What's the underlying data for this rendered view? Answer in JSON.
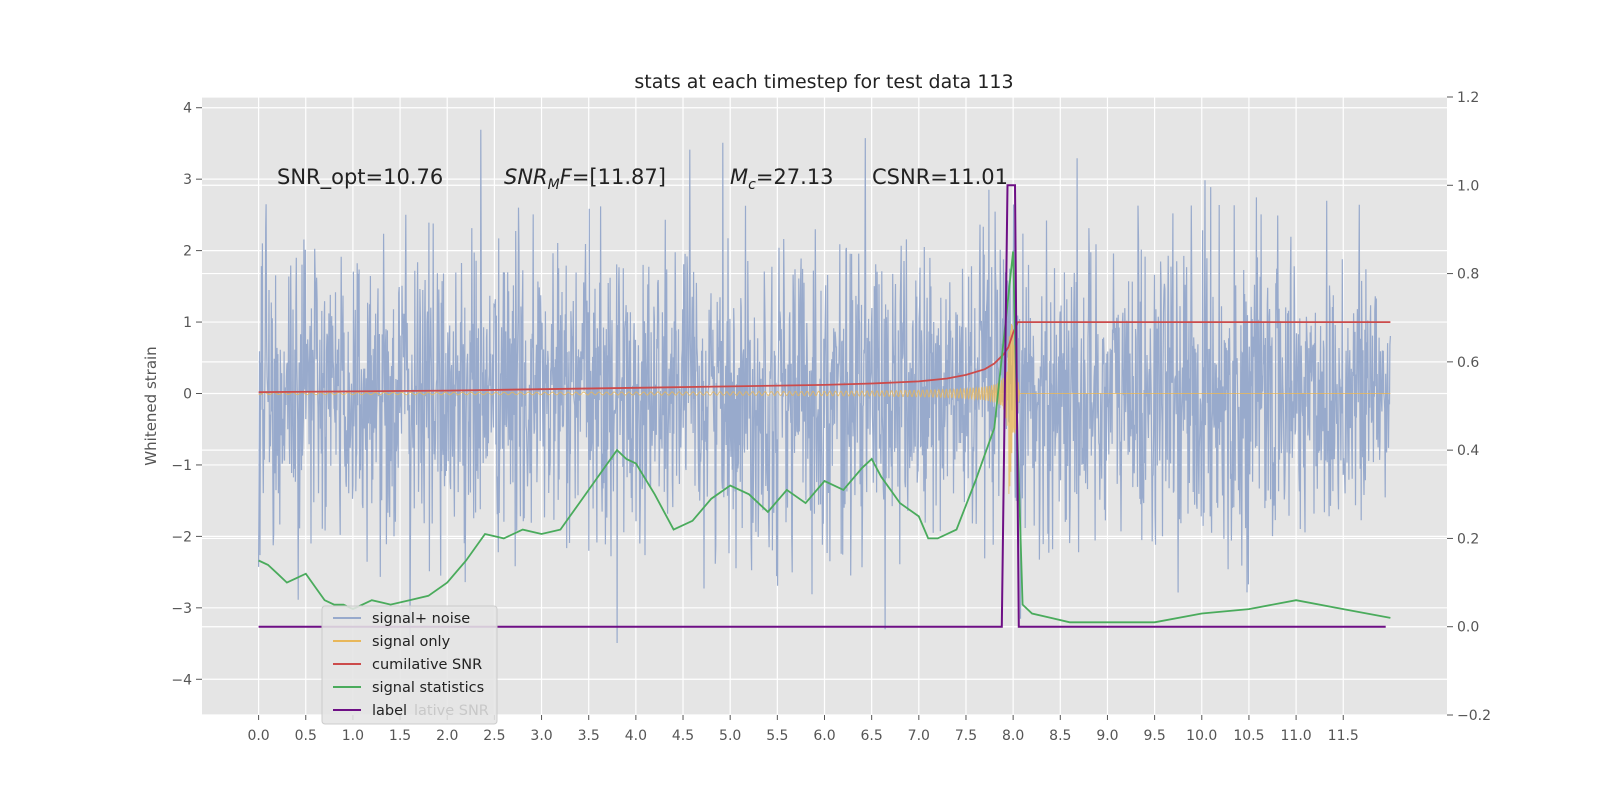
{
  "chart_data": {
    "type": "line",
    "title": "stats at each timestep for test data 113",
    "ylabel": "Whitened strain",
    "xlim": [
      -0.6,
      12.6
    ],
    "ylim_left": [
      -4.5,
      4.15
    ],
    "ylim_right": [
      -0.2,
      1.2
    ],
    "xticks": [
      "0.0",
      "0.5",
      "1.0",
      "1.5",
      "2.0",
      "2.5",
      "3.0",
      "3.5",
      "4.0",
      "4.5",
      "5.0",
      "5.5",
      "6.0",
      "6.5",
      "7.0",
      "7.5",
      "8.0",
      "8.5",
      "9.0",
      "9.5",
      "10.0",
      "10.5",
      "11.0",
      "11.5"
    ],
    "yticks_left": [
      "4",
      "3",
      "2",
      "1",
      "0",
      "−1",
      "−2",
      "−3",
      "−4"
    ],
    "yticks_right": [
      "1.2",
      "1.0",
      "0.8",
      "0.6",
      "0.4",
      "0.2",
      "0.0",
      "−0.2"
    ],
    "annotations": [
      {
        "text": "SNR_opt=10.76",
        "italic_sub": false
      },
      {
        "main": "SNR",
        "sub": "M",
        "rest": "F=[11.87]"
      },
      {
        "main": "M",
        "sub": "c",
        "rest": "=27.13"
      },
      {
        "text": "CSNR=11.01"
      }
    ],
    "legend": {
      "position": "lower-left",
      "entries": [
        "signal+ noise",
        "signal only",
        "cumilative SNR",
        "signal statistics",
        "label"
      ],
      "ghost_text": "lative SNR"
    },
    "colors": {
      "background": "#e5e5e5",
      "grid": "#ffffff",
      "signal_noise": "#98aacc",
      "signal_only": "#e8b75a",
      "cumulative_snr": "#cc4b4b",
      "signal_statistics": "#4aab5c",
      "label": "#6e0f85"
    },
    "series": [
      {
        "name": "signal+ noise",
        "axis": "left",
        "summary": {
          "x_range": [
            0.0,
            12.0
          ],
          "typical_range": [
            -2.2,
            2.4
          ],
          "max": 3.7,
          "min": -4.1
        }
      },
      {
        "name": "signal only",
        "axis": "left",
        "summary": {
          "x_range": [
            0.0,
            12.0
          ],
          "envelope_peak_x": 7.95,
          "envelope_peak": 1.5
        }
      },
      {
        "name": "cumilative SNR",
        "axis": "left",
        "x": [
          0.0,
          1.0,
          2.0,
          3.0,
          4.0,
          5.0,
          6.0,
          6.5,
          7.0,
          7.3,
          7.5,
          7.7,
          7.8,
          7.9,
          7.95,
          8.0,
          8.05,
          12.0
        ],
        "y": [
          0.02,
          0.03,
          0.04,
          0.06,
          0.08,
          0.1,
          0.12,
          0.14,
          0.17,
          0.21,
          0.26,
          0.34,
          0.42,
          0.55,
          0.65,
          0.85,
          1.0,
          1.0
        ]
      },
      {
        "name": "signal statistics",
        "axis": "right",
        "x": [
          0.0,
          0.1,
          0.2,
          0.3,
          0.4,
          0.5,
          0.6,
          0.7,
          0.8,
          0.9,
          1.0,
          1.2,
          1.4,
          1.6,
          1.8,
          2.0,
          2.2,
          2.4,
          2.6,
          2.8,
          3.0,
          3.2,
          3.4,
          3.6,
          3.8,
          3.9,
          4.0,
          4.2,
          4.4,
          4.6,
          4.8,
          5.0,
          5.2,
          5.4,
          5.6,
          5.8,
          6.0,
          6.2,
          6.4,
          6.5,
          6.6,
          6.8,
          7.0,
          7.1,
          7.2,
          7.4,
          7.6,
          7.8,
          7.9,
          8.0,
          8.05,
          8.1,
          8.2,
          8.4,
          8.6,
          8.8,
          9.0,
          9.5,
          10.0,
          10.5,
          11.0,
          11.5,
          12.0
        ],
        "y": [
          0.15,
          0.14,
          0.12,
          0.1,
          0.11,
          0.12,
          0.09,
          0.06,
          0.05,
          0.05,
          0.04,
          0.06,
          0.05,
          0.06,
          0.07,
          0.1,
          0.15,
          0.21,
          0.2,
          0.22,
          0.21,
          0.22,
          0.28,
          0.34,
          0.4,
          0.38,
          0.37,
          0.3,
          0.22,
          0.24,
          0.29,
          0.32,
          0.3,
          0.26,
          0.31,
          0.28,
          0.33,
          0.31,
          0.36,
          0.38,
          0.34,
          0.28,
          0.25,
          0.2,
          0.2,
          0.22,
          0.33,
          0.45,
          0.65,
          0.85,
          0.4,
          0.05,
          0.03,
          0.02,
          0.01,
          0.01,
          0.01,
          0.01,
          0.03,
          0.04,
          0.06,
          0.04,
          0.02
        ]
      },
      {
        "name": "label",
        "axis": "right",
        "x": [
          0.0,
          7.88,
          7.94,
          8.02,
          8.06,
          11.95
        ],
        "y": [
          0.0,
          0.0,
          1.0,
          1.0,
          0.0,
          0.0
        ]
      }
    ]
  }
}
